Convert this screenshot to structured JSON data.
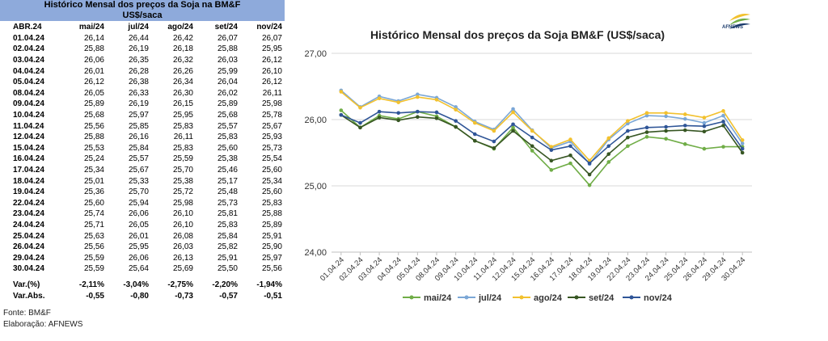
{
  "table": {
    "title_line1": "Histórico Mensal dos preços da Soja na BM&F",
    "title_line2": "US$/saca",
    "header": [
      "ABR.24",
      "mai/24",
      "jul/24",
      "ago/24",
      "set/24",
      "nov/24"
    ],
    "rows": [
      [
        "01.04.24",
        "26,14",
        "26,44",
        "26,42",
        "26,07",
        "26,07"
      ],
      [
        "02.04.24",
        "25,88",
        "26,19",
        "26,18",
        "25,88",
        "25,95"
      ],
      [
        "03.04.24",
        "26,06",
        "26,35",
        "26,32",
        "26,03",
        "26,12"
      ],
      [
        "04.04.24",
        "26,01",
        "26,28",
        "26,26",
        "25,99",
        "26,10"
      ],
      [
        "05.04.24",
        "26,12",
        "26,38",
        "26,34",
        "26,04",
        "26,12"
      ],
      [
        "08.04.24",
        "26,05",
        "26,33",
        "26,30",
        "26,02",
        "26,11"
      ],
      [
        "09.04.24",
        "25,89",
        "26,19",
        "26,15",
        "25,89",
        "25,98"
      ],
      [
        "10.04.24",
        "25,68",
        "25,97",
        "25,95",
        "25,68",
        "25,78"
      ],
      [
        "11.04.24",
        "25,56",
        "25,85",
        "25,83",
        "25,57",
        "25,67"
      ],
      [
        "12.04.24",
        "25,88",
        "26,16",
        "26,11",
        "25,83",
        "25,93"
      ],
      [
        "15.04.24",
        "25,53",
        "25,84",
        "25,83",
        "25,60",
        "25,73"
      ],
      [
        "16.04.24",
        "25,24",
        "25,57",
        "25,59",
        "25,38",
        "25,54"
      ],
      [
        "17.04.24",
        "25,34",
        "25,67",
        "25,70",
        "25,46",
        "25,60"
      ],
      [
        "18.04.24",
        "25,01",
        "25,33",
        "25,38",
        "25,17",
        "25,34"
      ],
      [
        "19.04.24",
        "25,36",
        "25,70",
        "25,72",
        "25,48",
        "25,60"
      ],
      [
        "22.04.24",
        "25,60",
        "25,94",
        "25,98",
        "25,73",
        "25,83"
      ],
      [
        "23.04.24",
        "25,74",
        "26,06",
        "26,10",
        "25,81",
        "25,88"
      ],
      [
        "24.04.24",
        "25,71",
        "26,05",
        "26,10",
        "25,83",
        "25,89"
      ],
      [
        "25.04.24",
        "25,63",
        "26,01",
        "26,08",
        "25,84",
        "25,91"
      ],
      [
        "26.04.24",
        "25,56",
        "25,95",
        "26,03",
        "25,82",
        "25,90"
      ],
      [
        "29.04.24",
        "25,59",
        "26,06",
        "26,13",
        "25,91",
        "25,97"
      ],
      [
        "30.04.24",
        "25,59",
        "25,64",
        "25,69",
        "25,50",
        "25,56"
      ]
    ],
    "var_pct": [
      "Var.(%)",
      "-2,11%",
      "-3,04%",
      "-2,75%",
      "-2,20%",
      "-1,94%"
    ],
    "var_abs": [
      "Var.Abs.",
      "-0,55",
      "-0,80",
      "-0,73",
      "-0,57",
      "-0,51"
    ],
    "source": "Fonte: BM&F",
    "credit": "Elaboração: AFNEWS"
  },
  "logo": {
    "text": "AFNEWS"
  },
  "chart_data": {
    "type": "line",
    "title": "Histórico Mensal dos preços da Soja BM&F (US$/saca)",
    "categories": [
      "01.04.24",
      "02.04.24",
      "03.04.24",
      "04.04.24",
      "05.04.24",
      "08.04.24",
      "09.04.24",
      "10.04.24",
      "11.04.24",
      "12.04.24",
      "15.04.24",
      "16.04.24",
      "17.04.24",
      "18.04.24",
      "19.04.24",
      "22.04.24",
      "23.04.24",
      "24.04.24",
      "25.04.24",
      "26.04.24",
      "29.04.24",
      "30.04.24"
    ],
    "ylim": [
      24,
      27
    ],
    "yticks": [
      "24,00",
      "25,00",
      "26,00",
      "27,00"
    ],
    "grid": true,
    "legend": "bottom",
    "series": [
      {
        "name": "mai/24",
        "color": "#70ad47",
        "values": [
          26.14,
          25.88,
          26.06,
          26.01,
          26.12,
          26.05,
          25.89,
          25.68,
          25.56,
          25.88,
          25.53,
          25.24,
          25.34,
          25.01,
          25.36,
          25.6,
          25.74,
          25.71,
          25.63,
          25.56,
          25.59,
          25.59
        ]
      },
      {
        "name": "jul/24",
        "color": "#7ba7d6",
        "values": [
          26.44,
          26.19,
          26.35,
          26.28,
          26.38,
          26.33,
          26.19,
          25.97,
          25.85,
          26.16,
          25.84,
          25.57,
          25.67,
          25.33,
          25.7,
          25.94,
          26.06,
          26.05,
          26.01,
          25.95,
          26.06,
          25.64
        ]
      },
      {
        "name": "ago/24",
        "color": "#f2c12e",
        "values": [
          26.42,
          26.18,
          26.32,
          26.26,
          26.34,
          26.3,
          26.15,
          25.95,
          25.83,
          26.11,
          25.83,
          25.59,
          25.7,
          25.38,
          25.72,
          25.98,
          26.1,
          26.1,
          26.08,
          26.03,
          26.13,
          25.69
        ]
      },
      {
        "name": "set/24",
        "color": "#375623",
        "values": [
          26.07,
          25.88,
          26.03,
          25.99,
          26.04,
          26.02,
          25.89,
          25.68,
          25.57,
          25.83,
          25.6,
          25.38,
          25.46,
          25.17,
          25.48,
          25.73,
          25.81,
          25.83,
          25.84,
          25.82,
          25.91,
          25.5
        ]
      },
      {
        "name": "nov/24",
        "color": "#2f5597",
        "values": [
          26.07,
          25.95,
          26.12,
          26.1,
          26.12,
          26.11,
          25.98,
          25.78,
          25.67,
          25.93,
          25.73,
          25.54,
          25.6,
          25.34,
          25.6,
          25.83,
          25.88,
          25.89,
          25.91,
          25.9,
          25.97,
          25.56
        ]
      }
    ]
  }
}
